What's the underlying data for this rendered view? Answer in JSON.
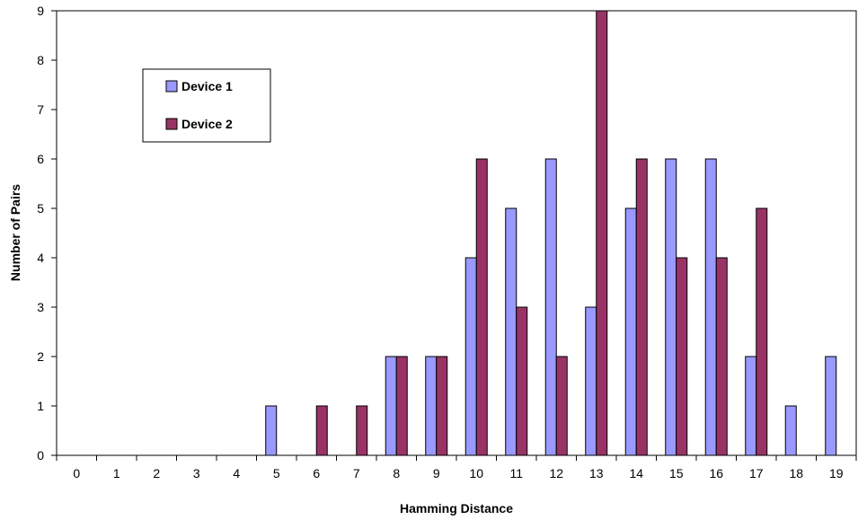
{
  "chart_data": {
    "type": "bar",
    "title": "",
    "xlabel": "Hamming Distance",
    "ylabel": "Number of Pairs",
    "categories": [
      "0",
      "1",
      "2",
      "3",
      "4",
      "5",
      "6",
      "7",
      "8",
      "9",
      "10",
      "11",
      "12",
      "13",
      "14",
      "15",
      "16",
      "17",
      "18",
      "19"
    ],
    "series": [
      {
        "name": "Device 1",
        "values": [
          0,
          0,
          0,
          0,
          0,
          1,
          0,
          0,
          2,
          2,
          4,
          5,
          6,
          3,
          5,
          6,
          6,
          2,
          1,
          2
        ],
        "color": "#9999ff"
      },
      {
        "name": "Device 2",
        "values": [
          0,
          0,
          0,
          0,
          0,
          0,
          1,
          1,
          2,
          2,
          6,
          3,
          2,
          9,
          6,
          4,
          4,
          5,
          0,
          0
        ],
        "color": "#993366"
      }
    ],
    "ylim": [
      0,
      9
    ],
    "yticks": [
      "0",
      "1",
      "2",
      "3",
      "4",
      "5",
      "6",
      "7",
      "8",
      "9"
    ],
    "grid": false,
    "legend_position": "top-left"
  }
}
